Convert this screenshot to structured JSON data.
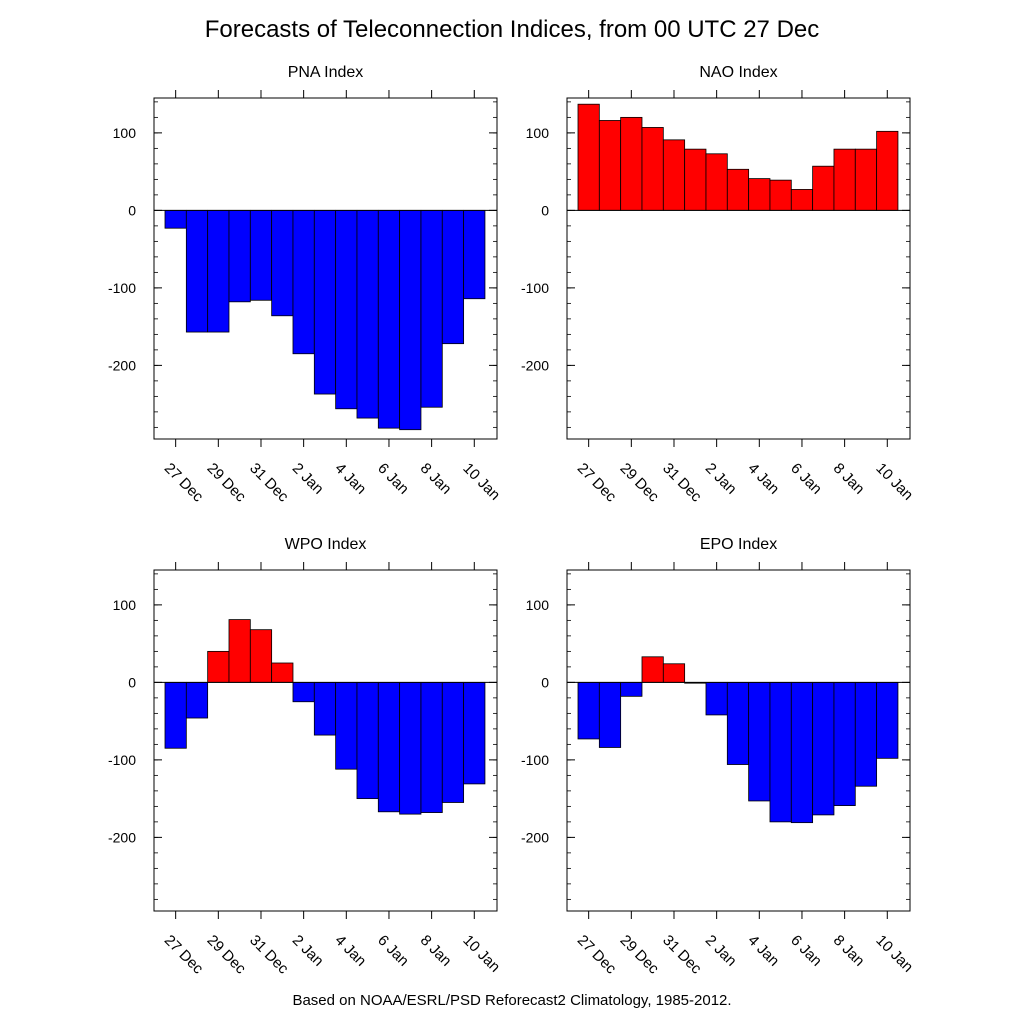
{
  "title": "Forecasts of Teleconnection Indices, from 00 UTC 27 Dec",
  "footer": "Based on NOAA/ESRL/PSD Reforecast2 Climatology, 1985-2012.",
  "colors": {
    "positive": "#ff0000",
    "negative": "#0000ff",
    "axis": "#000000"
  },
  "chart_data": [
    {
      "type": "bar",
      "title": "PNA Index",
      "xlabel": "",
      "ylabel": "",
      "ylim": [
        -295,
        145
      ],
      "yticks": [
        -200,
        -100,
        0,
        100
      ],
      "x_tick_labels": [
        "27 Dec",
        "29 Dec",
        "31 Dec",
        "2 Jan",
        "4 Jan",
        "6 Jan",
        "8 Jan",
        "10 Jan"
      ],
      "values": [
        -23,
        -157,
        -157,
        -118,
        -116,
        -136,
        -185,
        -237,
        -256,
        -268,
        -281,
        -283,
        -254,
        -172,
        -114
      ]
    },
    {
      "type": "bar",
      "title": "NAO Index",
      "xlabel": "",
      "ylabel": "",
      "ylim": [
        -295,
        145
      ],
      "yticks": [
        -200,
        -100,
        0,
        100
      ],
      "x_tick_labels": [
        "27 Dec",
        "29 Dec",
        "31 Dec",
        "2 Jan",
        "4 Jan",
        "6 Jan",
        "8 Jan",
        "10 Jan"
      ],
      "values": [
        137,
        116,
        120,
        107,
        91,
        79,
        73,
        53,
        41,
        39,
        27,
        57,
        79,
        79,
        102
      ]
    },
    {
      "type": "bar",
      "title": "WPO Index",
      "xlabel": "",
      "ylabel": "",
      "ylim": [
        -295,
        145
      ],
      "yticks": [
        -200,
        -100,
        0,
        100
      ],
      "x_tick_labels": [
        "27 Dec",
        "29 Dec",
        "31 Dec",
        "2 Jan",
        "4 Jan",
        "6 Jan",
        "8 Jan",
        "10 Jan"
      ],
      "values": [
        -85,
        -46,
        40,
        81,
        68,
        25,
        -25,
        -68,
        -112,
        -150,
        -167,
        -170,
        -168,
        -155,
        -131
      ]
    },
    {
      "type": "bar",
      "title": "EPO Index",
      "xlabel": "",
      "ylabel": "",
      "ylim": [
        -295,
        145
      ],
      "yticks": [
        -200,
        -100,
        0,
        100
      ],
      "x_tick_labels": [
        "27 Dec",
        "29 Dec",
        "31 Dec",
        "2 Jan",
        "4 Jan",
        "6 Jan",
        "8 Jan",
        "10 Jan"
      ],
      "values": [
        -73,
        -84,
        -18,
        33,
        24,
        -1,
        -42,
        -106,
        -153,
        -180,
        -181,
        -171,
        -159,
        -134,
        -98
      ]
    }
  ]
}
